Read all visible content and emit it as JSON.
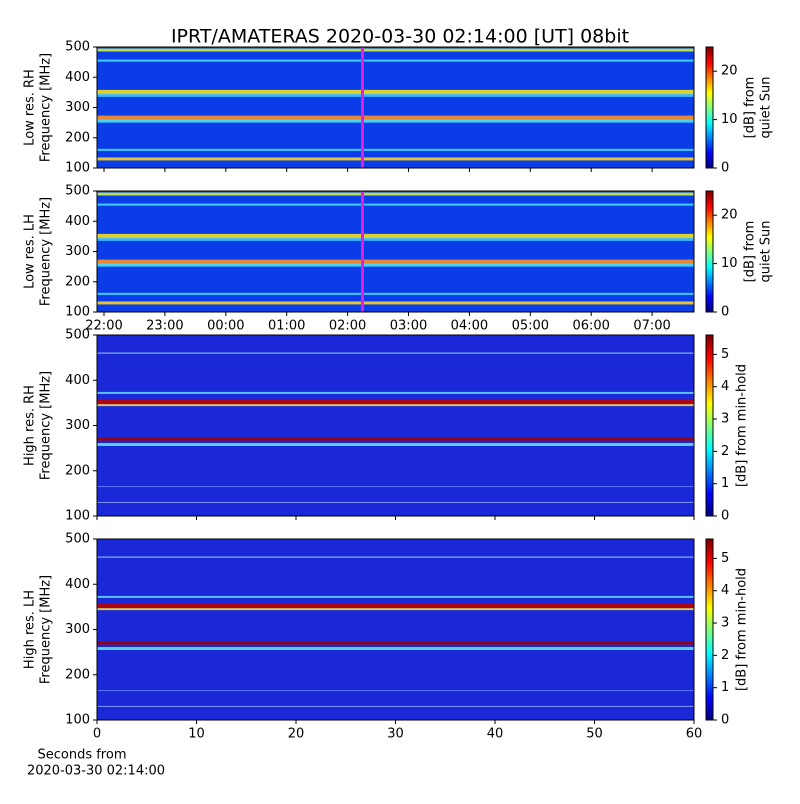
{
  "title": "IPRT/AMATERAS 2020-03-30 02:14:00 [UT]   08bit",
  "chart_data": [
    {
      "type": "heatmap",
      "ylabel": [
        "Low res. RH",
        "Frequency [MHz]"
      ],
      "ylim": [
        100,
        500
      ],
      "yticks": [
        100,
        200,
        300,
        400,
        500
      ],
      "clim": [
        0,
        25
      ],
      "cticks": [
        0,
        10,
        20
      ],
      "clabel": [
        "[dB] from",
        "quiet Sun"
      ],
      "resolution": "low"
    },
    {
      "type": "heatmap",
      "ylabel": [
        "Low res. LH",
        "Frequency [MHz]"
      ],
      "ylim": [
        100,
        500
      ],
      "yticks": [
        100,
        200,
        300,
        400,
        500
      ],
      "xticks": [
        "22:00",
        "23:00",
        "00:00",
        "01:00",
        "02:00",
        "03:00",
        "04:00",
        "05:00",
        "06:00",
        "07:00"
      ],
      "clim": [
        0,
        25
      ],
      "cticks": [
        0,
        10,
        20
      ],
      "clabel": [
        "[dB] from",
        "quiet Sun"
      ],
      "resolution": "low"
    },
    {
      "type": "heatmap",
      "ylabel": [
        "High res. RH",
        "Frequency [MHz]"
      ],
      "ylim": [
        100,
        500
      ],
      "yticks": [
        100,
        200,
        300,
        400,
        500
      ],
      "clim": [
        0,
        5.6
      ],
      "cticks": [
        0,
        1,
        2,
        3,
        4,
        5
      ],
      "clabel": [
        "[dB] from min-hold"
      ],
      "resolution": "high"
    },
    {
      "type": "heatmap",
      "ylabel": [
        "High res. LH",
        "Frequency [MHz]"
      ],
      "ylim": [
        100,
        500
      ],
      "yticks": [
        100,
        200,
        300,
        400,
        500
      ],
      "xlim": [
        0,
        60
      ],
      "xticks": [
        0,
        10,
        20,
        30,
        40,
        50,
        60
      ],
      "xlabel": [
        "Seconds from",
        "2020-03-30 02:14:00"
      ],
      "clim": [
        0,
        5.6
      ],
      "cticks": [
        0,
        1,
        2,
        3,
        4,
        5
      ],
      "clabel": [
        "[dB] from min-hold"
      ],
      "resolution": "high"
    }
  ]
}
